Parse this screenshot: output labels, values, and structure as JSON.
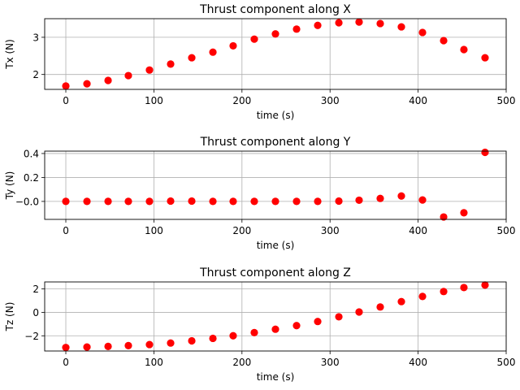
{
  "chart_data": [
    {
      "type": "scatter",
      "title": "Thrust component along X",
      "xlabel": "time (s)",
      "ylabel": "Tx (N)",
      "xlim": [
        -24,
        500
      ],
      "ylim": [
        1.6,
        3.5
      ],
      "xticks": [
        0,
        100,
        200,
        300,
        400,
        500
      ],
      "yticks": [
        2,
        3
      ],
      "ytick_labels": [
        "2",
        "3"
      ],
      "grid": true,
      "marker_color": "#ff0000",
      "x": [
        0,
        24,
        48,
        71,
        95,
        119,
        143,
        167,
        190,
        214,
        238,
        262,
        286,
        310,
        333,
        357,
        381,
        405,
        429,
        452,
        476
      ],
      "y": [
        1.69,
        1.75,
        1.84,
        1.97,
        2.12,
        2.28,
        2.45,
        2.6,
        2.77,
        2.95,
        3.09,
        3.22,
        3.32,
        3.39,
        3.41,
        3.37,
        3.28,
        3.13,
        2.91,
        2.67,
        2.45
      ]
    },
    {
      "type": "scatter",
      "title": "Thrust component along Y",
      "xlabel": "time (s)",
      "ylabel": "Ty (N)",
      "xlim": [
        -24,
        500
      ],
      "ylim": [
        -0.15,
        0.42
      ],
      "xticks": [
        0,
        100,
        200,
        300,
        400,
        500
      ],
      "yticks": [
        -0.0,
        0.2,
        0.4
      ],
      "ytick_labels": [
        "−0.0",
        "0.2",
        "0.4"
      ],
      "grid": true,
      "marker_color": "#ff0000",
      "x": [
        0,
        24,
        48,
        71,
        95,
        119,
        143,
        167,
        190,
        214,
        238,
        262,
        286,
        310,
        333,
        357,
        381,
        405,
        429,
        452,
        476
      ],
      "y": [
        0.0,
        0.0,
        0.0,
        0.0,
        0.0,
        0.003,
        0.003,
        0.0,
        0.0,
        0.0,
        0.0,
        0.0,
        0.0,
        0.003,
        0.01,
        0.025,
        0.045,
        0.012,
        -0.13,
        -0.095,
        0.41
      ]
    },
    {
      "type": "scatter",
      "title": "Thrust component along Z",
      "xlabel": "time (s)",
      "ylabel": "Tz (N)",
      "xlim": [
        -24,
        500
      ],
      "ylim": [
        -3.3,
        2.6
      ],
      "xticks": [
        0,
        100,
        200,
        300,
        400,
        500
      ],
      "yticks": [
        -2,
        0,
        2
      ],
      "ytick_labels": [
        "−2",
        "0",
        "2"
      ],
      "grid": true,
      "marker_color": "#ff0000",
      "x": [
        0,
        24,
        48,
        71,
        95,
        119,
        143,
        167,
        190,
        214,
        238,
        262,
        286,
        310,
        333,
        357,
        381,
        405,
        429,
        452,
        476
      ],
      "y": [
        -3.0,
        -2.96,
        -2.91,
        -2.84,
        -2.75,
        -2.62,
        -2.43,
        -2.22,
        -2.0,
        -1.73,
        -1.44,
        -1.13,
        -0.78,
        -0.38,
        0.03,
        0.46,
        0.92,
        1.36,
        1.78,
        2.12,
        2.33
      ]
    }
  ]
}
